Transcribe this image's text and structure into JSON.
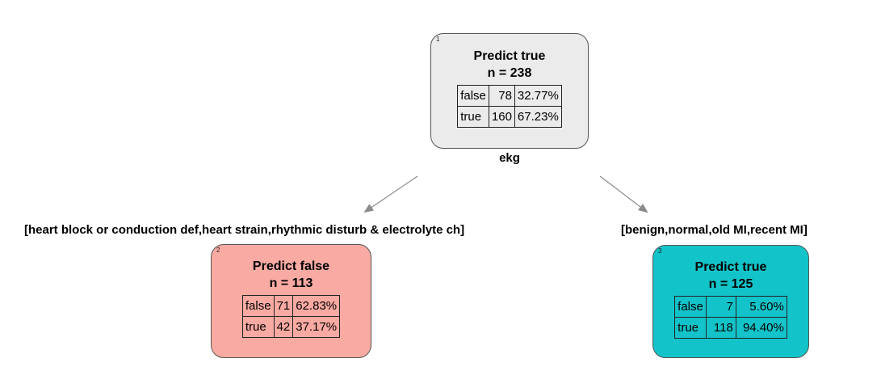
{
  "tree": {
    "root": {
      "id": "1",
      "prediction": "Predict true",
      "n": "n = 238",
      "color": "#ebebeb",
      "rows": [
        {
          "label": "false",
          "count": "78",
          "pct": "32.77%"
        },
        {
          "label": "true",
          "count": "160",
          "pct": "67.23%"
        }
      ],
      "split_variable": "ekg"
    },
    "left_edge_label": "[heart block or conduction def,heart strain,rhythmic disturb & electrolyte ch]",
    "right_edge_label": "[benign,normal,old MI,recent MI]",
    "left": {
      "id": "2",
      "prediction": "Predict false",
      "n": "n = 113",
      "color": "#f9aaa2",
      "rows": [
        {
          "label": "false",
          "count": "71",
          "pct": "62.83%"
        },
        {
          "label": "true",
          "count": "42",
          "pct": "37.17%"
        }
      ]
    },
    "right": {
      "id": "3",
      "prediction": "Predict true",
      "n": "n = 125",
      "color": "#12c4c9",
      "rows": [
        {
          "label": "false",
          "count": "7",
          "pct": "5.60%"
        },
        {
          "label": "true",
          "count": "118",
          "pct": "94.40%"
        }
      ]
    }
  },
  "colors": {
    "edge": "#8a8a8a",
    "border": "#555555"
  }
}
